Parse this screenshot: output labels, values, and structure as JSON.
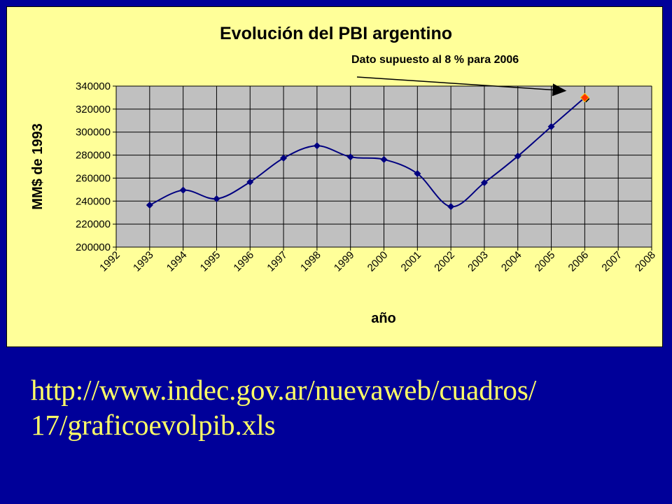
{
  "slide": {
    "url_line1": "http://www.indec.gov.ar/nuevaweb/cuadros/",
    "url_line2": "17/graficoevolpib.xls",
    "colors": {
      "background": "#000099",
      "chart_panel": "#ffff99",
      "plot_area": "#c0c0c0",
      "series": "#000080",
      "highlight_marker": "#ff3300",
      "url_text": "#ffff66"
    }
  },
  "chart_data": {
    "type": "line",
    "title": "Evolución del PBI argentino",
    "xlabel": "año",
    "ylabel": "MM$ de 1993",
    "x_ticks": [
      "1992",
      "1993",
      "1994",
      "1995",
      "1996",
      "1997",
      "1998",
      "1999",
      "2000",
      "2001",
      "2002",
      "2003",
      "2004",
      "2005",
      "2006",
      "2007",
      "2008"
    ],
    "y_ticks": [
      "200000",
      "220000",
      "240000",
      "260000",
      "280000",
      "300000",
      "320000",
      "340000"
    ],
    "ylim": [
      200000,
      340000
    ],
    "xlim": [
      1992,
      2008
    ],
    "grid": true,
    "series": [
      {
        "x": [
          1993,
          1994,
          1995,
          1996,
          1997,
          1998,
          1999,
          2000,
          2001,
          2002,
          2003,
          2004,
          2005,
          2006
        ],
        "values": [
          236500,
          249500,
          242000,
          256600,
          277400,
          288100,
          278400,
          276200,
          263900,
          235200,
          256000,
          279100,
          304800,
          330000
        ]
      }
    ],
    "annotation": {
      "text": "Dato supuesto al 8 %  para 2006",
      "x": 2006,
      "y": 330000
    }
  }
}
